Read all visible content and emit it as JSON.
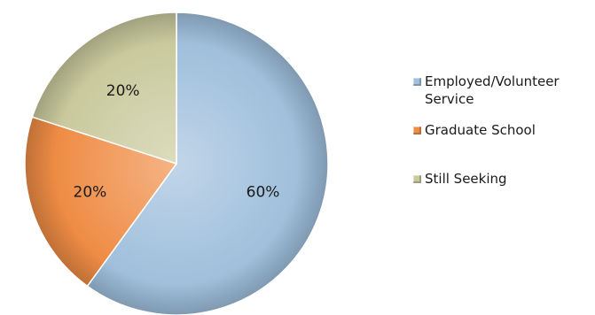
{
  "chart_data": {
    "type": "pie",
    "slices": [
      {
        "label": "Employed/Volunteer Service",
        "value": 60,
        "data_label": "60%",
        "color": "#9fbfdc"
      },
      {
        "label": "Graduate School",
        "value": 20,
        "data_label": "20%",
        "color": "#ef8c45"
      },
      {
        "label": "Still Seeking",
        "value": 20,
        "data_label": "20%",
        "color": "#c9c99d"
      }
    ],
    "legend_position": "right"
  }
}
